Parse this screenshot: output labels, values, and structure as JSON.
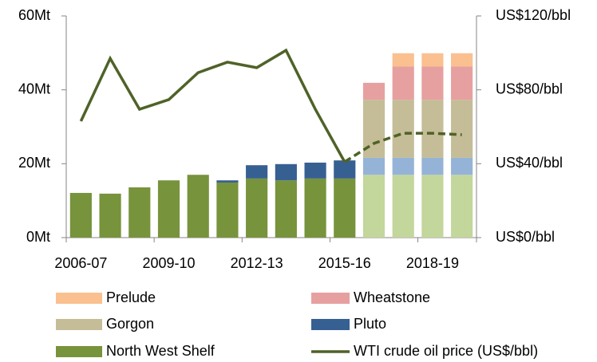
{
  "chart_data": {
    "type": "bar",
    "categories": [
      "2006-07",
      null,
      null,
      "2009-10",
      null,
      null,
      "2012-13",
      null,
      null,
      "2015-16",
      null,
      null,
      "2018-19",
      null
    ],
    "projected": [
      false,
      false,
      false,
      false,
      false,
      false,
      false,
      false,
      false,
      false,
      true,
      true,
      true,
      true
    ],
    "line_projected": [
      false,
      false,
      false,
      false,
      false,
      false,
      false,
      false,
      false,
      true,
      true,
      true,
      true,
      true
    ],
    "ylim": [
      0,
      60
    ],
    "yticks": [
      {
        "value": 0,
        "label": "0Mt"
      },
      {
        "value": 20,
        "label": "20Mt"
      },
      {
        "value": 40,
        "label": "40Mt"
      },
      {
        "value": 60,
        "label": "60Mt"
      }
    ],
    "y2lim": [
      0,
      120
    ],
    "y2ticks": [
      {
        "value": 0,
        "label": "US$0/bbl"
      },
      {
        "value": 40,
        "label": "US$40/bbl"
      },
      {
        "value": 80,
        "label": "US$80/bbl"
      },
      {
        "value": 120,
        "label": "US$120/bbl"
      }
    ],
    "series": [
      {
        "name": "North West Shelf",
        "color": "#77933c",
        "projected_color": "#c3d69b",
        "values": [
          12.1,
          11.9,
          13.6,
          15.5,
          17.0,
          14.9,
          16.0,
          15.5,
          16.0,
          16.0,
          17.0,
          17.0,
          17.0,
          17.0
        ]
      },
      {
        "name": "Pluto",
        "color": "#376092",
        "projected_color": "#95b3d7",
        "values": [
          null,
          null,
          null,
          null,
          null,
          0.6,
          3.6,
          4.4,
          4.3,
          4.9,
          4.6,
          4.6,
          4.6,
          4.6
        ]
      },
      {
        "name": "Gorgon",
        "color": "#c4bd97",
        "projected_color": "#c4bd97",
        "values": [
          null,
          null,
          null,
          null,
          null,
          null,
          null,
          null,
          null,
          null,
          15.7,
          15.7,
          15.7,
          15.7
        ]
      },
      {
        "name": "Wheatstone",
        "color": "#e6a0a0",
        "projected_color": "#e6a0a0",
        "values": [
          null,
          null,
          null,
          null,
          null,
          null,
          null,
          null,
          null,
          null,
          4.6,
          9.0,
          9.0,
          9.0
        ]
      },
      {
        "name": "Prelude",
        "color": "#fac090",
        "projected_color": "#fac090",
        "values": [
          null,
          null,
          null,
          null,
          null,
          null,
          null,
          null,
          null,
          null,
          null,
          3.6,
          3.6,
          3.6
        ]
      },
      {
        "name": "WTI crude oil price (US$/bbl)",
        "type": "line",
        "axis": "y2",
        "color": "#4f6228",
        "values": [
          63,
          97,
          69.5,
          74.7,
          89.3,
          95,
          92,
          101.4,
          69.5,
          41,
          51,
          56.5,
          56.5,
          55.7
        ]
      }
    ]
  }
}
